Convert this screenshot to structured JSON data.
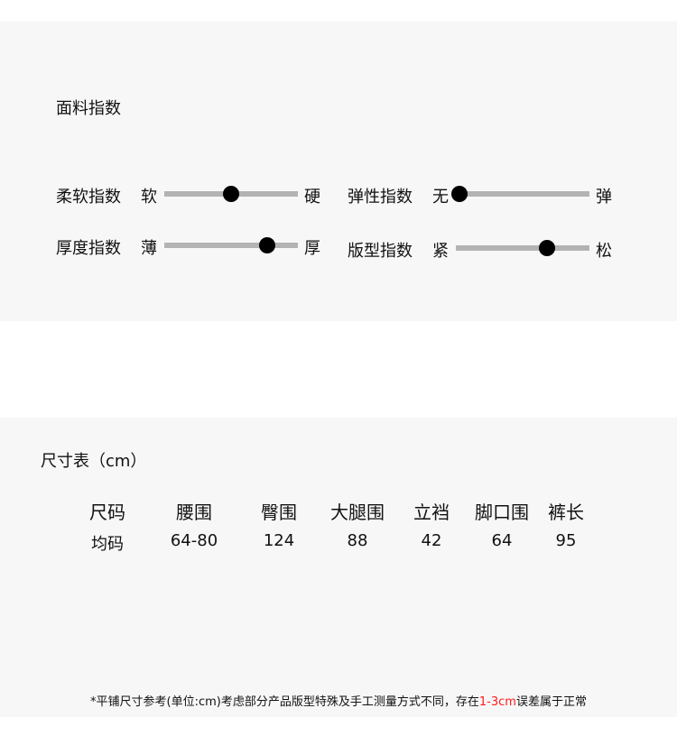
{
  "fabric": {
    "title": "面料指数",
    "sliders": [
      {
        "label": "柔软指数",
        "left": "软",
        "right": "硬",
        "value_percent": 50
      },
      {
        "label": "弹性指数",
        "left": "无",
        "right": "弹",
        "value_percent": 0
      },
      {
        "label": "厚度指数",
        "left": "薄",
        "right": "厚",
        "value_percent": 77
      },
      {
        "label": "版型指数",
        "left": "紧",
        "right": "松",
        "value_percent": 68
      }
    ]
  },
  "size": {
    "title": "尺寸表（cm）",
    "headers": [
      "尺码",
      "腰围",
      "臀围",
      "大腿围",
      "立裆",
      "脚口围",
      "裤长"
    ],
    "row": [
      "均码",
      "64-80",
      "124",
      "88",
      "42",
      "64",
      "95"
    ]
  },
  "note": {
    "prefix": "*平铺尺寸参考(单位:cm)考虑部分产品版型特殊及手工测量方式不同，存在",
    "highlight": "1-3cm",
    "suffix": "误差属于正常"
  },
  "colors": {
    "highlight": "#ff1a1a",
    "knob": "#000000",
    "track": "#b3b3b3"
  }
}
